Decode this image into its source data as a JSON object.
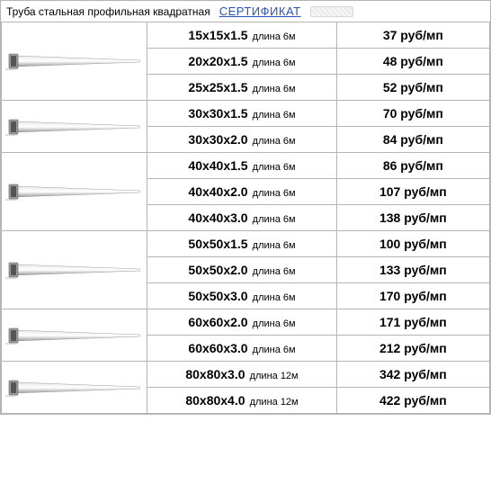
{
  "header": {
    "title": "Труба стальная профильная квадратная",
    "link_label": "СЕРТИФИКАТ"
  },
  "length_prefix": "длина",
  "price_suffix": "руб/мп",
  "colors": {
    "border": "#b5b5b5",
    "link": "#2a52be",
    "text": "#000000",
    "pipe_light": "#e8e8e8",
    "pipe_dark": "#9a9a9a",
    "pipe_end": "#555555"
  },
  "groups": [
    {
      "image": true,
      "rows": [
        {
          "dim": "15х15х1.5",
          "length": "6м",
          "price": 37
        },
        {
          "dim": "20х20х1.5",
          "length": "6м",
          "price": 48
        },
        {
          "dim": "25х25х1.5",
          "length": "6м",
          "price": 52
        }
      ]
    },
    {
      "image": true,
      "rows": [
        {
          "dim": "30х30х1.5",
          "length": "6м",
          "price": 70
        },
        {
          "dim": "30х30х2.0",
          "length": "6м",
          "price": 84
        }
      ]
    },
    {
      "image": true,
      "rows": [
        {
          "dim": "40х40х1.5",
          "length": "6м",
          "price": 86
        },
        {
          "dim": "40х40х2.0",
          "length": "6м",
          "price": 107
        },
        {
          "dim": "40х40х3.0",
          "length": "6м",
          "price": 138
        }
      ]
    },
    {
      "image": true,
      "rows": [
        {
          "dim": "50х50х1.5",
          "length": "6м",
          "price": 100
        },
        {
          "dim": "50х50х2.0",
          "length": "6м",
          "price": 133
        },
        {
          "dim": "50х50х3.0",
          "length": "6м",
          "price": 170
        }
      ]
    },
    {
      "image": true,
      "rows": [
        {
          "dim": "60х60х2.0",
          "length": "6м",
          "price": 171
        },
        {
          "dim": "60х60х3.0",
          "length": "6м",
          "price": 212
        }
      ]
    },
    {
      "image": true,
      "rows": [
        {
          "dim": "80х80х3.0",
          "length": "12м",
          "price": 342
        },
        {
          "dim": "80х80х4.0",
          "length": "12м",
          "price": 422
        }
      ]
    }
  ]
}
